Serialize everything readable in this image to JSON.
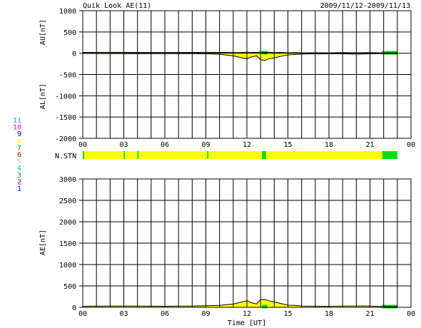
{
  "header": {
    "title": "Quik Look AE(11)",
    "date_range": "2009/11/12-2009/11/13"
  },
  "xaxis": {
    "label": "Time [UT]",
    "ticks": [
      "00",
      "03",
      "06",
      "09",
      "12",
      "15",
      "18",
      "21",
      "00"
    ]
  },
  "station_legend": {
    "labels": [
      "11",
      "10",
      "9",
      "8",
      "7",
      "6",
      "5",
      "4",
      "3",
      "2",
      "1"
    ],
    "colors": [
      "#00c0c0",
      "#ff00ff",
      "#0000c0",
      "#ffff00",
      "#00c000",
      "#ff0000",
      "#c0c0c0",
      "#00c0ff",
      "#008080",
      "#800080",
      "#0000ff"
    ]
  },
  "nstn_label": "N.STN",
  "colors": {
    "yellow": "#ffff00",
    "green": "#00e000",
    "black": "#000000"
  },
  "chart_data": [
    {
      "type": "area",
      "name": "AU/AL",
      "ylabel_upper": "AU[nT]",
      "ylabel_lower": "AL[nT]",
      "ylim": [
        -2000,
        1000
      ],
      "yticks": [
        "1000",
        "500",
        "0",
        "-500",
        "-1000",
        "-1500",
        "-2000"
      ],
      "xlim": [
        0,
        24
      ],
      "x": [
        0,
        2,
        4,
        6,
        8,
        9,
        10,
        11,
        11.5,
        12,
        12.3,
        12.7,
        13,
        13.3,
        13.6,
        14,
        14.5,
        15,
        15.5,
        16,
        17,
        18,
        19,
        20,
        21,
        21.5,
        22,
        23
      ],
      "au": [
        20,
        22,
        20,
        18,
        20,
        22,
        20,
        18,
        15,
        25,
        20,
        20,
        30,
        15,
        25,
        15,
        20,
        10,
        15,
        10,
        12,
        10,
        15,
        12,
        15,
        12,
        10,
        8
      ],
      "al": [
        -5,
        -8,
        -10,
        -8,
        -10,
        -15,
        -25,
        -60,
        -100,
        -130,
        -90,
        -60,
        -150,
        -170,
        -130,
        -110,
        -70,
        -40,
        -30,
        -20,
        -15,
        -12,
        -15,
        -20,
        -15,
        -10,
        -8,
        -5
      ],
      "green_intervals": [
        [
          13.1,
          13.5
        ],
        [
          21.9,
          23
        ]
      ],
      "grid": true
    },
    {
      "type": "area",
      "name": "AE",
      "ylabel": "AE[nT]",
      "ylim": [
        0,
        3000
      ],
      "yticks": [
        "3000",
        "2500",
        "2000",
        "1500",
        "1000",
        "500",
        "0"
      ],
      "xlim": [
        0,
        24
      ],
      "x": [
        0,
        2,
        4,
        6,
        8,
        9,
        10,
        11,
        11.5,
        12,
        12.3,
        12.7,
        13,
        13.3,
        13.6,
        14,
        14.5,
        15,
        15.5,
        16,
        17,
        18,
        19,
        20,
        21,
        21.5,
        22,
        23
      ],
      "values": [
        25,
        30,
        30,
        26,
        30,
        37,
        45,
        78,
        115,
        155,
        110,
        80,
        180,
        185,
        155,
        125,
        90,
        50,
        45,
        30,
        27,
        22,
        30,
        32,
        30,
        22,
        18,
        13
      ],
      "green_intervals": [
        [
          13.1,
          13.5
        ],
        [
          21.9,
          23
        ]
      ],
      "grid": true
    }
  ],
  "nstn_bar": {
    "xlim": [
      0,
      24
    ],
    "base": "yellow",
    "segments": [
      {
        "start": 0,
        "end": 0.1,
        "color": "green"
      },
      {
        "start": 3.0,
        "end": 3.08,
        "color": "green"
      },
      {
        "start": 4.0,
        "end": 4.08,
        "color": "green"
      },
      {
        "start": 9.1,
        "end": 9.18,
        "color": "green"
      },
      {
        "start": 13.1,
        "end": 13.4,
        "color": "green"
      },
      {
        "start": 21.9,
        "end": 23.0,
        "color": "green"
      }
    ]
  }
}
